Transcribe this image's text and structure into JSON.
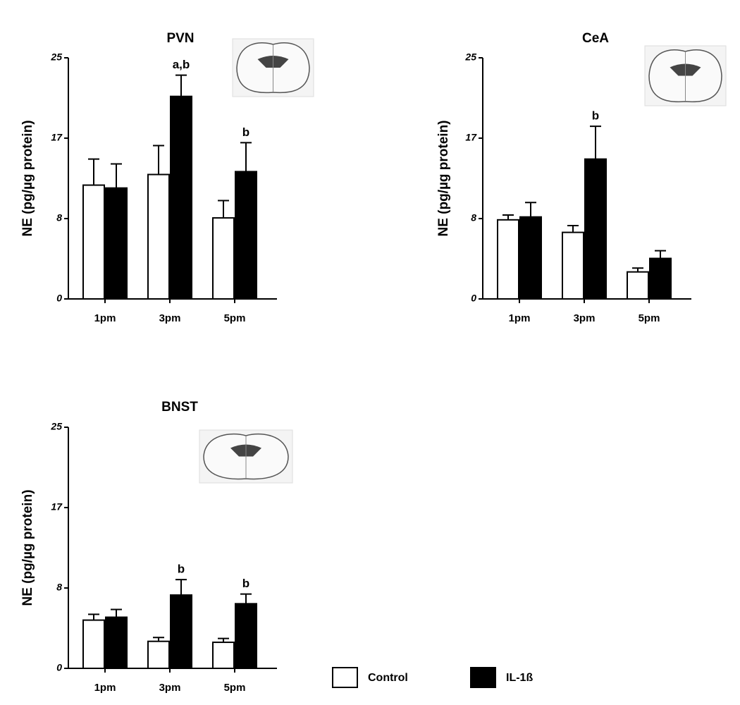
{
  "chart_data": [
    {
      "type": "bar",
      "title": "PVN",
      "y_label": "NE (pg/µg protein)",
      "categories": [
        "1pm",
        "3pm",
        "5pm"
      ],
      "series": [
        {
          "color": "#ffffff",
          "values": [
            11.8,
            12.9,
            8.4
          ],
          "errors": [
            2.7,
            3.0,
            1.8
          ]
        },
        {
          "color": "#000000",
          "values": [
            11.5,
            21.0,
            13.2
          ],
          "errors": [
            2.5,
            2.2,
            3.0
          ]
        }
      ],
      "ylim": [
        0,
        25
      ],
      "yticks": [
        0,
        {
          "value": 8.33,
          "label": "8"
        },
        {
          "value": 16.67,
          "label": "17"
        },
        25
      ],
      "annotations": [
        {
          "text": "a,b",
          "series": 1,
          "category": 1
        },
        {
          "text": "b",
          "series": 1,
          "category": 2
        }
      ]
    },
    {
      "type": "bar",
      "title": "CeA",
      "y_label": "NE (pg/µg protein)",
      "categories": [
        "1pm",
        "3pm",
        "5pm"
      ],
      "series": [
        {
          "color": "#ffffff",
          "values": [
            8.2,
            6.9,
            2.8
          ],
          "errors": [
            0.5,
            0.7,
            0.4
          ]
        },
        {
          "color": "#000000",
          "values": [
            8.5,
            14.5,
            4.2
          ],
          "errors": [
            1.5,
            3.4,
            0.8
          ]
        }
      ],
      "ylim": [
        0,
        25
      ],
      "yticks": [
        0,
        {
          "value": 8.33,
          "label": "8"
        },
        {
          "value": 16.67,
          "label": "17"
        },
        25
      ],
      "annotations": [
        {
          "text": "b",
          "series": 1,
          "category": 1
        }
      ]
    },
    {
      "type": "bar",
      "title": "BNST",
      "y_label": "NE (pg/µg protein)",
      "categories": [
        "1pm",
        "3pm",
        "5pm"
      ],
      "series": [
        {
          "name": "Control",
          "color": "#ffffff",
          "values": [
            5.0,
            2.8,
            2.7
          ],
          "errors": [
            0.6,
            0.4,
            0.4
          ]
        },
        {
          "name": "IL-1ß",
          "color": "#000000",
          "values": [
            5.3,
            7.6,
            6.7
          ],
          "errors": [
            0.8,
            1.6,
            1.0
          ]
        }
      ],
      "ylim": [
        0,
        25
      ],
      "yticks": [
        0,
        {
          "value": 8.33,
          "label": "8"
        },
        {
          "value": 16.67,
          "label": "17"
        },
        25
      ],
      "annotations": [
        {
          "text": "b",
          "series": 1,
          "category": 1
        },
        {
          "text": "b",
          "series": 1,
          "category": 2
        }
      ]
    }
  ]
}
